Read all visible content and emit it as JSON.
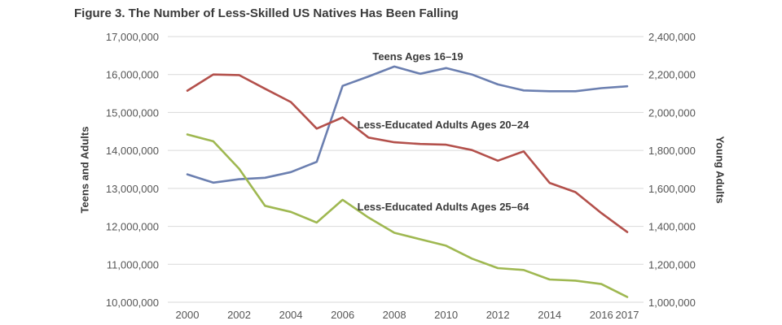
{
  "chart_data": {
    "type": "line",
    "title": "Figure 3. The Number of Less-Skilled US Natives Has Been Falling",
    "ylabel_left": "Teens and Adults",
    "ylabel_right": "Young Adults",
    "x": [
      2000,
      2001,
      2002,
      2003,
      2004,
      2005,
      2006,
      2007,
      2008,
      2009,
      2010,
      2011,
      2012,
      2013,
      2014,
      2015,
      2016,
      2017
    ],
    "x_tick_labels": [
      "2000",
      "2002",
      "2004",
      "2006",
      "2008",
      "2010",
      "2012",
      "2014",
      "2016",
      "2017"
    ],
    "x_tick_values": [
      2000,
      2002,
      2004,
      2006,
      2008,
      2010,
      2012,
      2014,
      2016,
      2017
    ],
    "ylim_left": [
      10000000,
      17000000
    ],
    "ylim_right": [
      1000000,
      2400000
    ],
    "y_left_tick_labels": [
      "10,000,000",
      "11,000,000",
      "12,000,000",
      "13,000,000",
      "14,000,000",
      "15,000,000",
      "16,000,000",
      "17,000,000"
    ],
    "y_left_tick_values": [
      10000000,
      11000000,
      12000000,
      13000000,
      14000000,
      15000000,
      16000000,
      17000000
    ],
    "y_right_tick_labels": [
      "1,000,000",
      "1,200,000",
      "1,400,000",
      "1,600,000",
      "1,800,000",
      "2,000,000",
      "2,200,000",
      "2,400,000"
    ],
    "y_right_tick_values": [
      1000000,
      1200000,
      1400000,
      1600000,
      1800000,
      2000000,
      2200000,
      2400000
    ],
    "grid": true,
    "series": [
      {
        "name": "Teens Ages 16–19",
        "axis": "left",
        "color": "#6b7fb0",
        "values": [
          13370000,
          13150000,
          13240000,
          13280000,
          13430000,
          13700000,
          15700000,
          15950000,
          16210000,
          16020000,
          16170000,
          16000000,
          15740000,
          15580000,
          15560000,
          15560000,
          15640000,
          15690000
        ]
      },
      {
        "name": "Less-Educated Adults Ages 20–24",
        "axis": "right",
        "color": "#b3504b",
        "values": [
          2115000,
          2200000,
          2197000,
          2125000,
          2055000,
          1915000,
          1974000,
          1868000,
          1843000,
          1834000,
          1830000,
          1802000,
          1746000,
          1795000,
          1629000,
          1580000,
          1470000,
          1370000
        ]
      },
      {
        "name": "Less-Educated Adults Ages 25–64",
        "axis": "left",
        "color": "#9fb851",
        "values": [
          14420000,
          14240000,
          13520000,
          12540000,
          12380000,
          12100000,
          12700000,
          12230000,
          11830000,
          11660000,
          11490000,
          11150000,
          10900000,
          10850000,
          10600000,
          10570000,
          10480000,
          10140000
        ]
      }
    ]
  }
}
